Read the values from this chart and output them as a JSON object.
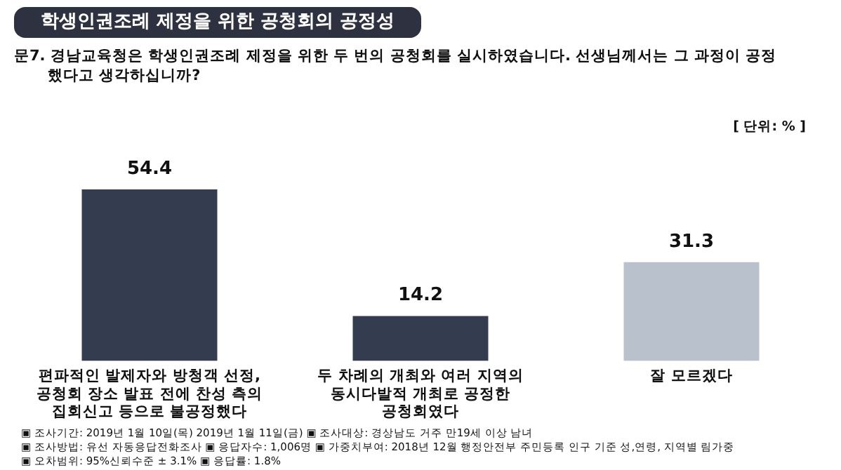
{
  "chart_data": {
    "type": "bar",
    "title": "학생인권조례 제정을 위한 공청회의 공정성",
    "subtitle": "문7. 경남교육청은 학생인권조례 제정을 위한 두 번의 공청회를 실시하였습니다. 선생님께서는 그 과정이 공정했다고 생각하십니까?",
    "categories": [
      "편파적인 발제자와 방청객 선정, 공청회 장소 발표 전에 찬성 측의 집회신고 등으로 불공정했다",
      "두 차례의 개최와 여러 지역의 동시다발적 개최로 공정한 공청회였다",
      "잘 모르겠다"
    ],
    "values": [
      54.4,
      14.2,
      31.3
    ],
    "colors": [
      "#343d4f",
      "#343d4f",
      "#b8c1cc"
    ],
    "data_labels": true,
    "grid": false,
    "legend": false,
    "annotations": [
      "[ 단위: % ]",
      "▣ 조사기간: 2019년 1월 10일(목) 2019년 1월 11일(금) ▣ 조사대상: 경상남도 거주 만19세 이상 남녀",
      "▣ 조사방법: 유선 자동응답전화조사 ▣ 응답자수: 1,006명 ▣ 가중치부여: 2018년 12월 행정안전부 주민등록 인구 기준 성,연령, 지역별 림가중",
      "▣ 오차범위: 95%신뢰수준 ± 3.1% ▣ 응답률: 1.8%"
    ]
  }
}
